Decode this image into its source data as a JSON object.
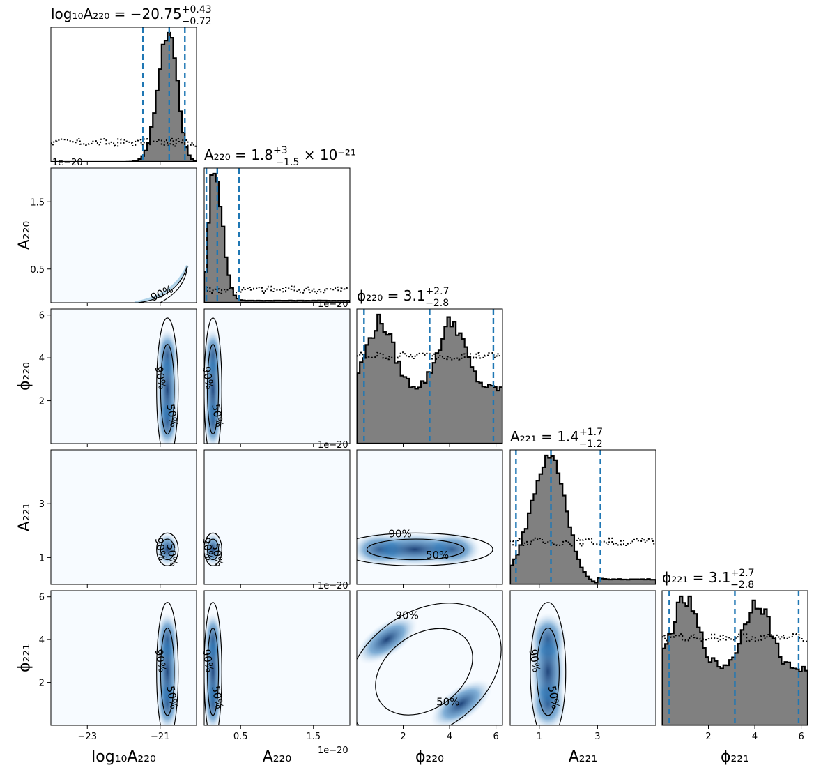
{
  "chart_data": {
    "type": "corner",
    "params": [
      {
        "key": "logA220",
        "axis_label": "log₁₀A₂₂₀",
        "title": {
          "lead": "log₁₀A₂₂₀ = −20.75",
          "sup": "+0.43",
          "sub": "−0.72",
          "tail": ""
        },
        "range": [
          -24.0,
          -20.0
        ],
        "ticks": [
          -23,
          -21
        ],
        "tick_labels": [
          "−23",
          "−21"
        ],
        "offset": "",
        "quantiles": [
          -21.47,
          -20.75,
          -20.32
        ],
        "hist_peak": -20.75,
        "hist_width": 0.32,
        "hist_skew": "left",
        "bimodal": false
      },
      {
        "key": "A220",
        "axis_label": "A₂₂₀",
        "title": {
          "lead": "A₂₂₀ = 1.8",
          "sup": "+3",
          "sub": "−1.5",
          "tail": " × 10⁻²¹"
        },
        "range": [
          0.0,
          2.0
        ],
        "ticks": [
          0.5,
          1.5
        ],
        "tick_labels": [
          "0.5",
          "1.5"
        ],
        "offset": "1e−20",
        "quantiles": [
          0.03,
          0.18,
          0.48
        ],
        "hist_peak": 0.13,
        "hist_width": 0.09,
        "hist_skew": "right",
        "bimodal": false
      },
      {
        "key": "phi220",
        "axis_label": "ϕ₂₂₀",
        "title": {
          "lead": "ϕ₂₂₀ = 3.1",
          "sup": "+2.7",
          "sub": "−2.8",
          "tail": ""
        },
        "range": [
          0.0,
          6.283
        ],
        "ticks": [
          2,
          4,
          6
        ],
        "tick_labels": [
          "2",
          "4",
          "6"
        ],
        "offset": "",
        "quantiles": [
          0.31,
          3.14,
          5.89
        ],
        "hist_peak": 0.9,
        "hist_width": 1.0,
        "hist_skew": "none",
        "bimodal": true
      },
      {
        "key": "A221",
        "axis_label": "A₂₂₁",
        "title": {
          "lead": "A₂₂₁ = 1.4",
          "sup": "+1.7",
          "sub": "−1.2",
          "tail": ""
        },
        "range": [
          0.0,
          5.0
        ],
        "ticks": [
          1,
          3
        ],
        "tick_labels": [
          "1",
          "3"
        ],
        "offset": "",
        "quantiles": [
          0.2,
          1.4,
          3.1
        ],
        "hist_peak": 1.4,
        "hist_width": 0.75,
        "hist_skew": "left",
        "bimodal": false
      },
      {
        "key": "phi221",
        "axis_label": "ϕ₂₂₁",
        "title": {
          "lead": "ϕ₂₂₁ = 3.1",
          "sup": "+2.7",
          "sub": "−2.8",
          "tail": ""
        },
        "range": [
          0.0,
          6.283
        ],
        "ticks": [
          2,
          4,
          6
        ],
        "tick_labels": [
          "2",
          "4",
          "6"
        ],
        "offset": "",
        "quantiles": [
          0.31,
          3.14,
          5.89
        ],
        "hist_peak": 0.9,
        "hist_width": 1.0,
        "hist_skew": "none",
        "bimodal": true
      }
    ],
    "contour_levels": [
      "50%",
      "90%"
    ],
    "colors": {
      "hist_fill": "#808080",
      "hist_edge": "#000000",
      "quantile_line": "#1f77b4",
      "density": "#08306b",
      "contour": "#000000"
    }
  }
}
